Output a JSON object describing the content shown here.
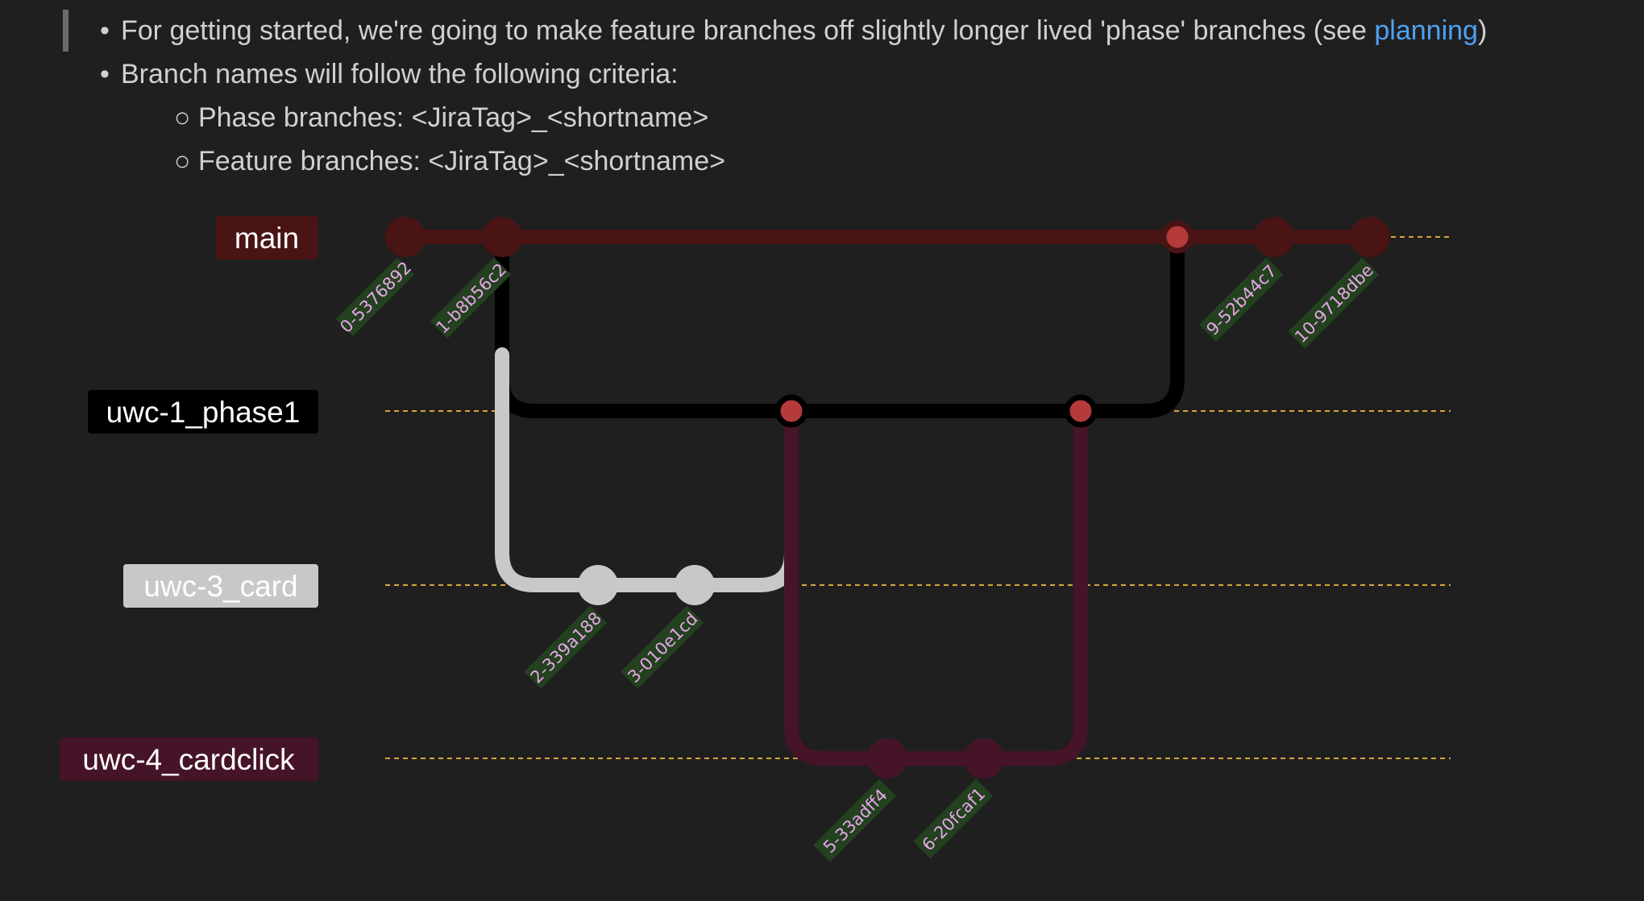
{
  "notes": {
    "bullets": [
      {
        "text": "For getting started, we're going to make feature branches off slightly longer lived 'phase' branches (see ",
        "link": "planning",
        "tail": ")"
      },
      {
        "text": "Branch names will follow the following criteria:"
      }
    ],
    "sub_bullets": [
      "Phase branches: <JiraTag>_<shortname>",
      "Feature branches: <JiraTag>_<shortname>"
    ]
  },
  "git_graph": {
    "branches": [
      {
        "name": "main",
        "color": "#4a1414",
        "label_color": "#ffffff"
      },
      {
        "name": "uwc-1_phase1",
        "color": "#000000",
        "label_color": "#ffffff"
      },
      {
        "name": "uwc-3_card",
        "color": "#c8c8c8",
        "label_color": "#ffffff"
      },
      {
        "name": "uwc-4_cardclick",
        "color": "#461428",
        "label_color": "#ffffff"
      }
    ],
    "commits": [
      {
        "id": "0-5376892",
        "branch": "main"
      },
      {
        "id": "1-b8b56c2",
        "branch": "main"
      },
      {
        "id": "2-339a188",
        "branch": "uwc-3_card"
      },
      {
        "id": "3-010e1cd",
        "branch": "uwc-3_card"
      },
      {
        "id": "5-33adff4",
        "branch": "uwc-4_cardclick"
      },
      {
        "id": "6-20fcaf1",
        "branch": "uwc-4_cardclick"
      },
      {
        "id": "9-52b44c7",
        "branch": "main"
      },
      {
        "id": "10-9718dbe",
        "branch": "main"
      }
    ],
    "merge_color": "#b53a3a",
    "commit_label_bg": "#23401f",
    "guide_color": "#d9a53a"
  }
}
